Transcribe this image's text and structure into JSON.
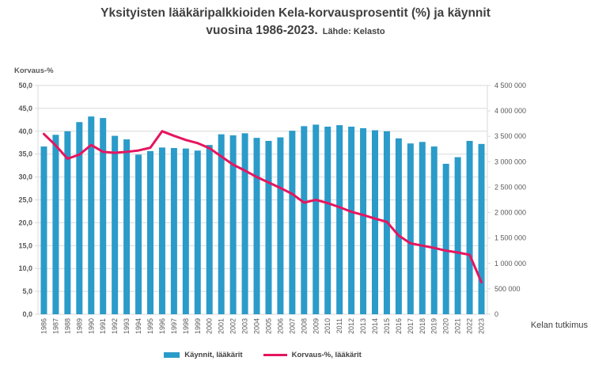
{
  "title": {
    "line1": "Yksityisten lääkäripalkkioiden Kela-korvausprosentit (%) ja käynnit",
    "line2": "vuosina 1986-2023.",
    "source": "Lähde: Kelasto"
  },
  "footer": "Kelan tutkimus",
  "legend": {
    "items": [
      {
        "label": "Käynnit, lääkärit",
        "type": "bar"
      },
      {
        "label": "Korvaus-%, lääkärit",
        "type": "line"
      }
    ]
  },
  "colors": {
    "bar": "#2B9BC9",
    "line": "#E6155F",
    "grid": "#D9D9D9",
    "axis_text": "#595959",
    "title_text": "#404040"
  },
  "chart_data": {
    "type": "bar",
    "subtype": "bar+line-dual-axis",
    "title": "Yksityisten lääkäripalkkioiden Kela-korvausprosentit (%) ja käynnit vuosina 1986-2023. Lähde: Kelasto",
    "x": [
      1986,
      1987,
      1988,
      1989,
      1990,
      1991,
      1992,
      1993,
      1994,
      1995,
      1996,
      1997,
      1998,
      1999,
      2000,
      2001,
      2002,
      2003,
      2004,
      2005,
      2006,
      2007,
      2008,
      2009,
      2010,
      2011,
      2012,
      2013,
      2014,
      2015,
      2016,
      2017,
      2018,
      2019,
      2020,
      2021,
      2022,
      2023
    ],
    "series": [
      {
        "name": "Käynnit, lääkärit",
        "type": "bar",
        "axis": "right",
        "values": [
          3300000,
          3530000,
          3600000,
          3780000,
          3890000,
          3860000,
          3510000,
          3440000,
          3140000,
          3210000,
          3280000,
          3270000,
          3260000,
          3220000,
          3330000,
          3540000,
          3520000,
          3560000,
          3470000,
          3410000,
          3480000,
          3610000,
          3700000,
          3730000,
          3690000,
          3720000,
          3690000,
          3660000,
          3620000,
          3600000,
          3460000,
          3360000,
          3390000,
          3300000,
          2960000,
          3090000,
          3410000,
          3350000
        ]
      },
      {
        "name": "Korvaus-%, lääkärit",
        "type": "line",
        "axis": "left",
        "values": [
          39.4,
          36.9,
          34.0,
          34.9,
          37.0,
          35.5,
          35.3,
          35.5,
          35.8,
          36.4,
          40.0,
          39.0,
          38.1,
          37.4,
          36.3,
          34.5,
          32.7,
          31.4,
          30.0,
          28.8,
          27.6,
          26.3,
          24.4,
          25.0,
          24.3,
          23.4,
          22.4,
          21.7,
          20.9,
          20.2,
          17.2,
          15.5,
          15.0,
          14.5,
          13.9,
          13.5,
          13.0,
          7.0
        ]
      }
    ],
    "left_axis": {
      "title": "Korvaus-%",
      "min": 0,
      "max": 50,
      "step": 5
    },
    "right_axis": {
      "min": 0,
      "max": 4500000,
      "step": 500000
    },
    "grid": true,
    "legend_position": "bottom"
  }
}
